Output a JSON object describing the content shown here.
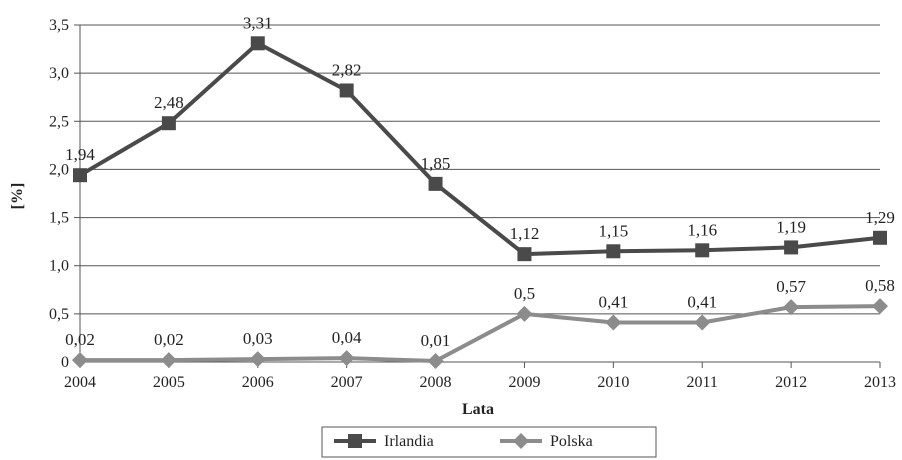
{
  "chart_data": {
    "type": "line",
    "xlabel": "Lata",
    "ylabel": "[%]",
    "x": [
      "2004",
      "2005",
      "2006",
      "2007",
      "2008",
      "2009",
      "2010",
      "2011",
      "2012",
      "2013"
    ],
    "ylim": [
      0,
      3.5
    ],
    "yticks": [
      "0",
      "0,5",
      "1,0",
      "1,5",
      "2,0",
      "2,5",
      "3,0",
      "3,5"
    ],
    "grid": "horizontal",
    "legend_position": "bottom",
    "series": [
      {
        "name": "Irlandia",
        "color": "#4a4a4a",
        "marker": "square",
        "values": [
          1.94,
          2.48,
          3.31,
          2.82,
          1.85,
          1.12,
          1.15,
          1.16,
          1.19,
          1.29
        ],
        "labels": [
          "1,94",
          "2,48",
          "3,31",
          "2,82",
          "1,85",
          "1,12",
          "1,15",
          "1,16",
          "1,19",
          "1,29"
        ]
      },
      {
        "name": "Polska",
        "color": "#8c8c8c",
        "marker": "diamond",
        "values": [
          0.02,
          0.02,
          0.03,
          0.04,
          0.01,
          0.5,
          0.41,
          0.41,
          0.57,
          0.58
        ],
        "labels": [
          "0,02",
          "0,02",
          "0,03",
          "0,04",
          "0,01",
          "0,5",
          "0,41",
          "0,41",
          "0,57",
          "0,58"
        ]
      }
    ]
  }
}
